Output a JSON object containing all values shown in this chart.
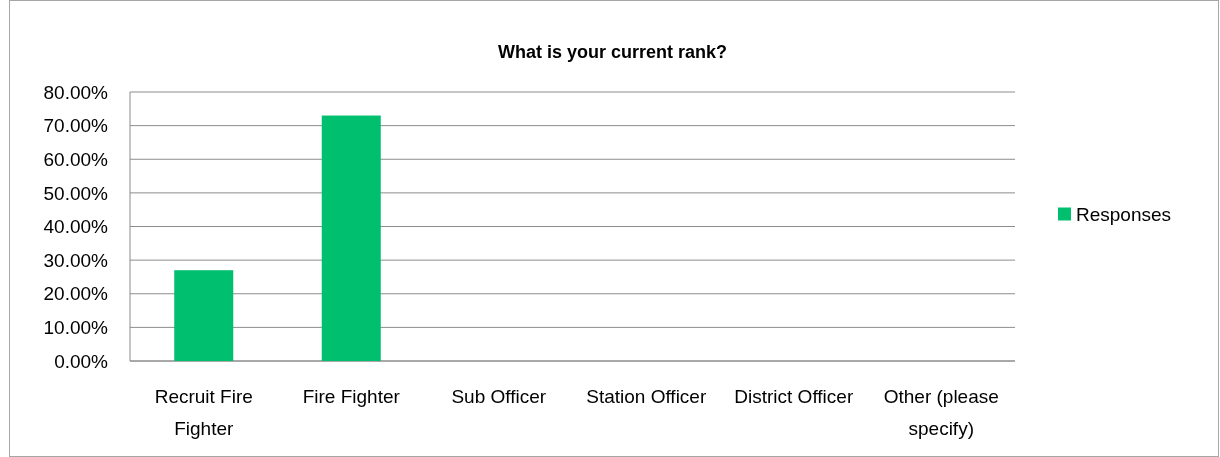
{
  "chart_data": {
    "type": "bar",
    "title": "What is your current rank?",
    "categories": [
      "Recruit Fire Fighter",
      "Fire Fighter",
      "Sub Officer",
      "Station Officer",
      "District Officer",
      "Other (please specify)"
    ],
    "series": [
      {
        "name": "Responses",
        "color": "#00bf6f",
        "values": [
          27,
          73,
          0,
          0,
          0,
          0
        ]
      }
    ],
    "ylim": [
      0,
      80
    ],
    "yticks": [
      {
        "value": 0,
        "label": "0.00%"
      },
      {
        "value": 10,
        "label": "10.00%"
      },
      {
        "value": 20,
        "label": "20.00%"
      },
      {
        "value": 30,
        "label": "30.00%"
      },
      {
        "value": 40,
        "label": "40.00%"
      },
      {
        "value": 50,
        "label": "50.00%"
      },
      {
        "value": 60,
        "label": "60.00%"
      },
      {
        "value": 70,
        "label": "70.00%"
      },
      {
        "value": 80,
        "label": "80.00%"
      }
    ],
    "grid": "y",
    "legend": "right"
  }
}
